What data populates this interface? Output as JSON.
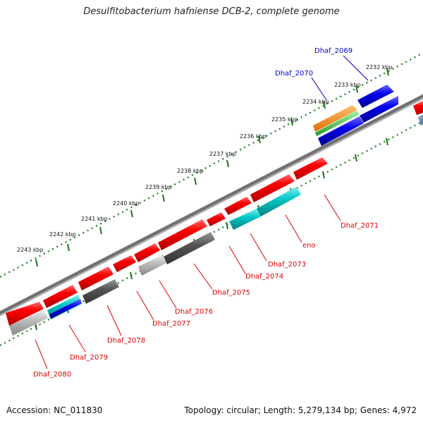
{
  "title": "Desulfitobacterium hafniense DCB-2, complete genome",
  "footer": {
    "accession": "Accession: NC_011830",
    "topology": "Topology: circular; Length: 5,279,134 bp; Genes: 4,972"
  },
  "colors": {
    "forward_gene": "#ff0000",
    "backbone": "#808080",
    "tick_dots": "#1a7a1a",
    "label_forward": "#0000c8",
    "label_reverse": "#e00000",
    "cog_blue": "#0000ee",
    "cog_orange": "#ff8c00",
    "cog_green": "#2ecc40",
    "cog_cyan": "#00c8c8",
    "cog_dark_gray": "#555555",
    "cog_light_gray": "#bbbbbb"
  },
  "scale_ticks": [
    "2232 kbp",
    "2233 kbp",
    "2234 kbp",
    "2235 kbp",
    "2236 kbp",
    "2237 kbp",
    "2238 kbp",
    "2239 kbp",
    "2240 kbp",
    "2241 kbp",
    "2242 kbp",
    "2243 kbp"
  ],
  "gene_labels": [
    "Dhaf_2069",
    "Dhaf_2070",
    "Dhaf_2071",
    "eno",
    "Dhaf_2073",
    "Dhaf_2074",
    "Dhaf_2075",
    "Dhaf_2076",
    "Dhaf_2077",
    "Dhaf_2078",
    "Dhaf_2079",
    "Dhaf_2080"
  ]
}
